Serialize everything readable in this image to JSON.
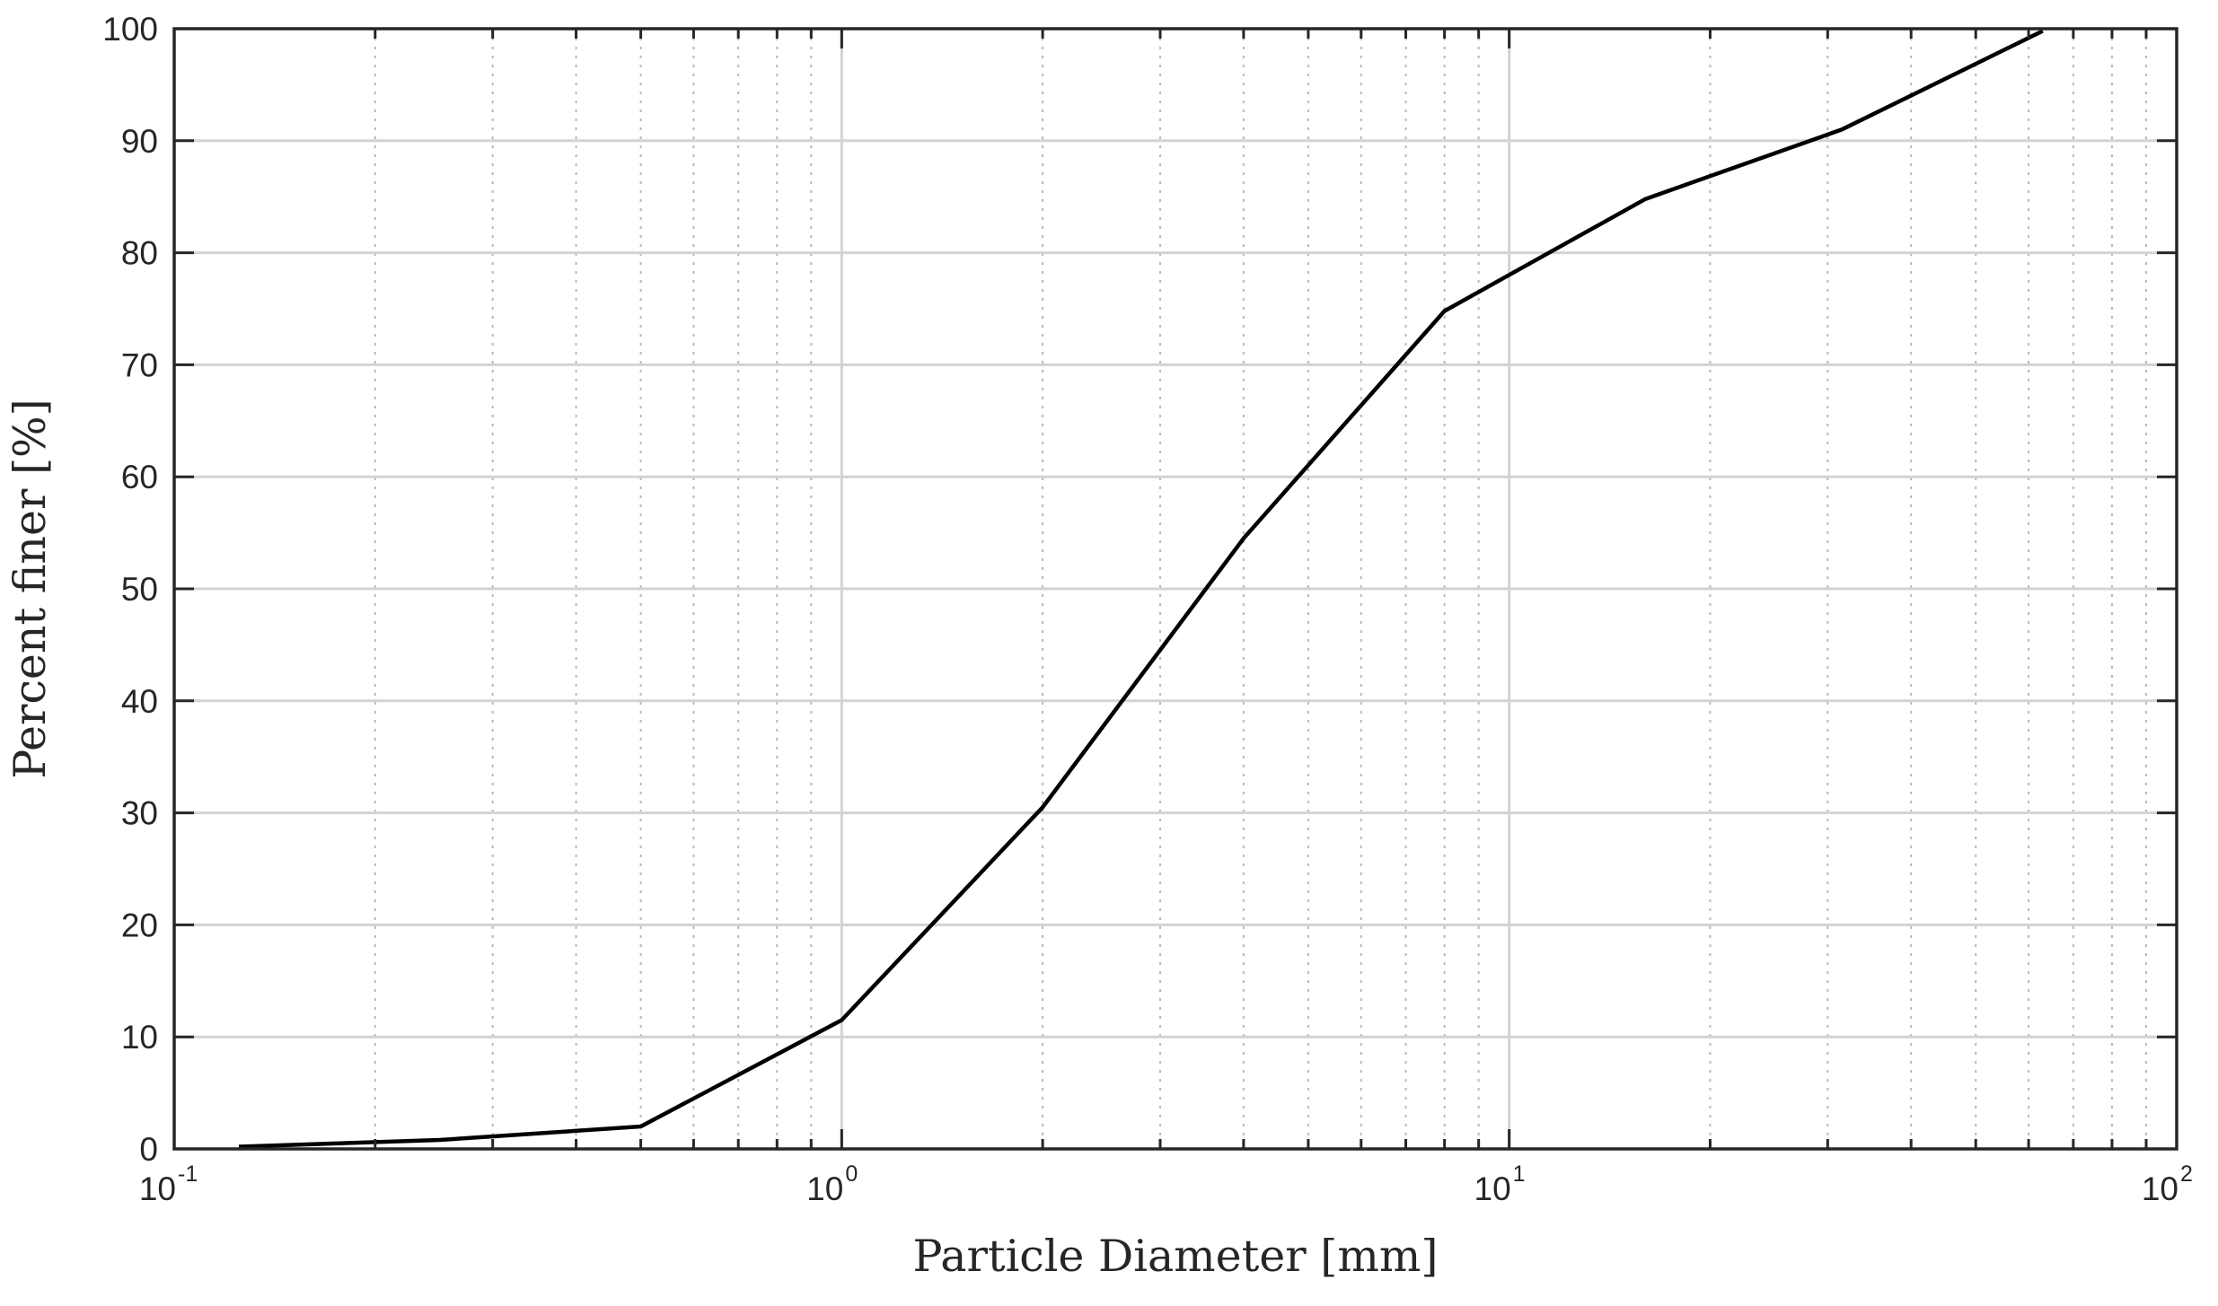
{
  "chart_data": {
    "type": "line",
    "title": "",
    "xlabel": "Particle Diameter [mm]",
    "ylabel": "Percent finer [%]",
    "xscale": "log",
    "xlim": [
      0.1,
      100
    ],
    "ylim": [
      0,
      100
    ],
    "grid": true,
    "x_ticks": [
      {
        "base": "10",
        "exp": "-1",
        "value": 0.1
      },
      {
        "base": "10",
        "exp": "0",
        "value": 1
      },
      {
        "base": "10",
        "exp": "1",
        "value": 10
      },
      {
        "base": "10",
        "exp": "2",
        "value": 100
      }
    ],
    "y_ticks": [
      "0",
      "10",
      "20",
      "30",
      "40",
      "50",
      "60",
      "70",
      "80",
      "90",
      "100"
    ],
    "series": [
      {
        "color": "#000000",
        "x": [
          0.125,
          0.25,
          0.5,
          1,
          2,
          4,
          8,
          16,
          31.5,
          63
        ],
        "y": [
          0.2,
          0.8,
          2,
          11.5,
          30.5,
          54.5,
          74.8,
          84.8,
          91,
          99.8
        ]
      }
    ]
  }
}
